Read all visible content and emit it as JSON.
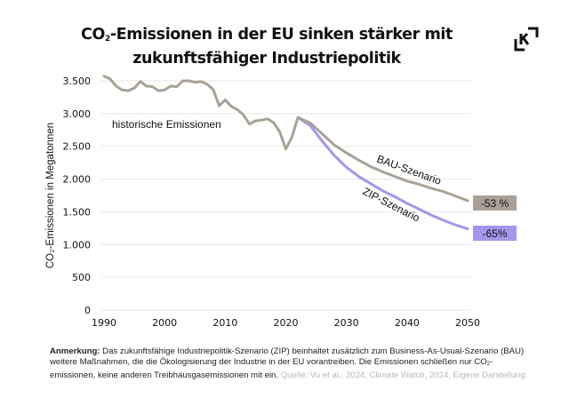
{
  "header": {
    "title_part1": "CO",
    "title_sub": "2",
    "title_part2": "-Emissionen in der EU sinken stärker mit",
    "title_line2": "zukunftsfähiger Industriepolitik",
    "logo_icon": "kontext-k-logo-icon"
  },
  "colors": {
    "bau": "#aaa196",
    "zip": "#a596ec",
    "grid": "#e6e6e6",
    "text": "#111111"
  },
  "chart_data": {
    "type": "line",
    "title": "CO₂-Emissionen in der EU sinken stärker mit zukunftsfähiger Industriepolitik",
    "xlabel": "",
    "ylabel": "CO₂-Emissionen in Megatonnen",
    "xlim": [
      1990,
      2050
    ],
    "ylim": [
      0,
      3500
    ],
    "grid": true,
    "x_ticks": [
      "1990",
      "2000",
      "2010",
      "2020",
      "2030",
      "2040",
      "2050"
    ],
    "x_tick_values": [
      1990,
      2000,
      2010,
      2020,
      2030,
      2040,
      2050
    ],
    "y_ticks": [
      "0",
      "500",
      "1.000",
      "1.500",
      "2.000",
      "2.500",
      "3.000",
      "3.500"
    ],
    "y_tick_values": [
      0,
      500,
      1000,
      1500,
      2000,
      2500,
      3000,
      3500
    ],
    "series": [
      {
        "name": "historische Emissionen",
        "color": "#aaa196",
        "x": [
          1990,
          1991,
          1992,
          1993,
          1994,
          1995,
          1996,
          1997,
          1998,
          1999,
          2000,
          2001,
          2002,
          2003,
          2004,
          2005,
          2006,
          2007,
          2008,
          2009,
          2010,
          2011,
          2012,
          2013,
          2014,
          2015,
          2016,
          2017,
          2018,
          2019,
          2020,
          2021,
          2022
        ],
        "y": [
          3570,
          3530,
          3420,
          3360,
          3350,
          3390,
          3490,
          3420,
          3410,
          3350,
          3360,
          3420,
          3410,
          3500,
          3500,
          3480,
          3490,
          3450,
          3370,
          3120,
          3210,
          3110,
          3060,
          2980,
          2840,
          2890,
          2900,
          2920,
          2860,
          2720,
          2460,
          2640,
          2940
        ]
      },
      {
        "name": "BAU-Szenario",
        "color": "#aaa196",
        "x": [
          2022,
          2024,
          2026,
          2028,
          2030,
          2032,
          2034,
          2036,
          2038,
          2040,
          2042,
          2044,
          2046,
          2048,
          2050
        ],
        "y": [
          2940,
          2860,
          2690,
          2520,
          2400,
          2290,
          2190,
          2110,
          2040,
          1970,
          1920,
          1860,
          1810,
          1740,
          1670
        ]
      },
      {
        "name": "ZIP-Szenario",
        "color": "#a596ec",
        "x": [
          2022,
          2024,
          2026,
          2028,
          2030,
          2032,
          2034,
          2036,
          2038,
          2040,
          2042,
          2044,
          2046,
          2048,
          2050
        ],
        "y": [
          2940,
          2820,
          2580,
          2360,
          2180,
          2040,
          1930,
          1820,
          1730,
          1630,
          1540,
          1450,
          1370,
          1300,
          1240
        ]
      }
    ],
    "annotations": [
      {
        "text": "historische Emissionen",
        "series": "historische Emissionen"
      },
      {
        "text": "BAU-Szenario",
        "series": "BAU-Szenario"
      },
      {
        "text": "ZIP-Szenario",
        "series": "ZIP-Szenario"
      },
      {
        "text": "-53 %",
        "series": "BAU-Szenario",
        "type": "end-label",
        "color": "#aaa196"
      },
      {
        "text": "-65%",
        "series": "ZIP-Szenario",
        "type": "end-label",
        "color": "#a596ec"
      }
    ]
  },
  "footnote": {
    "label": "Anmerkung:",
    "text_before_sub": " Das zukunftsfähige Industriepolitik-Szenario (ZIP) beinhaltet zusätzlich zum Business-As-Usual-Szenario (BAU) weitere Maßnahmen, die die Ökologisierung der Industrie in der EU vorantreiben. Die Emissionen schließen nur CO",
    "sub": "2",
    "text_after_sub": "-emissionen, keine anderen Treibhausgasemissionen mit ein.",
    "source": " Quelle: Vu et al., 2024, Climate Watch, 2024, Eigene Darstellung."
  }
}
